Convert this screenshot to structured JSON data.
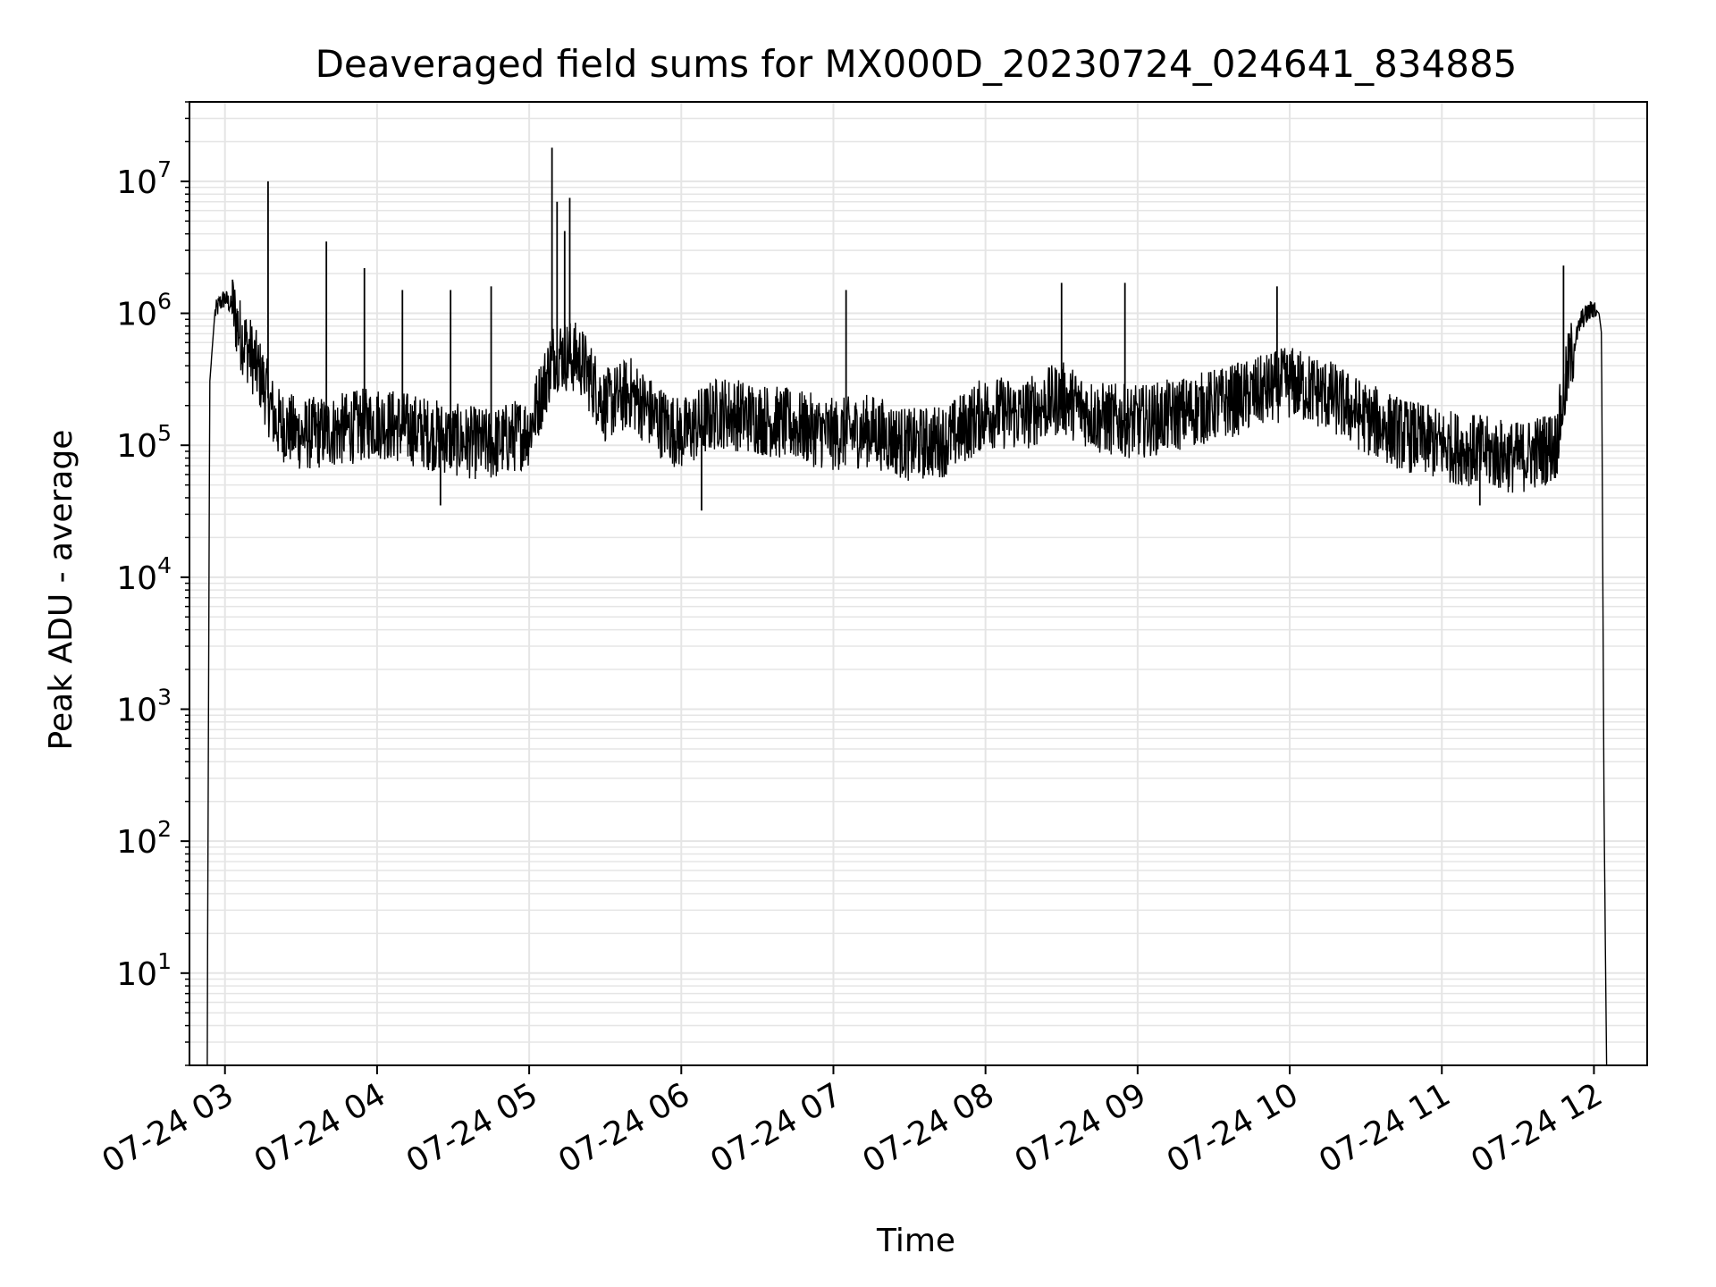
{
  "chart_data": {
    "type": "line",
    "title": "Deaveraged field sums for MX000D_20230724_024641_834885",
    "xlabel": "Time",
    "ylabel": "Peak ADU - average",
    "yscale": "log",
    "ylim": [
      2,
      40000000
    ],
    "xlim": [
      "2023-07-24 02:46",
      "2023-07-24 12:21"
    ],
    "grid": true,
    "series_color": "#000000",
    "grid_color": "#e5e5e5",
    "x_ticks": [
      {
        "value": "2023-07-24 03:00",
        "label": "07-24 03"
      },
      {
        "value": "2023-07-24 04:00",
        "label": "07-24 04"
      },
      {
        "value": "2023-07-24 05:00",
        "label": "07-24 05"
      },
      {
        "value": "2023-07-24 06:00",
        "label": "07-24 06"
      },
      {
        "value": "2023-07-24 07:00",
        "label": "07-24 07"
      },
      {
        "value": "2023-07-24 08:00",
        "label": "07-24 08"
      },
      {
        "value": "2023-07-24 09:00",
        "label": "07-24 09"
      },
      {
        "value": "2023-07-24 10:00",
        "label": "07-24 10"
      },
      {
        "value": "2023-07-24 11:00",
        "label": "07-24 11"
      },
      {
        "value": "2023-07-24 12:00",
        "label": "07-24 12"
      }
    ],
    "y_ticks": [
      {
        "value": 10,
        "base": "10",
        "exp": "1"
      },
      {
        "value": 100,
        "base": "10",
        "exp": "2"
      },
      {
        "value": 1000,
        "base": "10",
        "exp": "3"
      },
      {
        "value": 10000,
        "base": "10",
        "exp": "4"
      },
      {
        "value": 100000,
        "base": "10",
        "exp": "5"
      },
      {
        "value": 1000000,
        "base": "10",
        "exp": "6"
      },
      {
        "value": 10000000,
        "base": "10",
        "exp": "7"
      }
    ],
    "series": [
      {
        "x": [
          "2023-07-24 02:53",
          "2023-07-24 02:54",
          "2023-07-24 02:56",
          "2023-07-24 02:58",
          "2023-07-24 03:00",
          "2023-07-24 03:03",
          "2023-07-24 03:06",
          "2023-07-24 03:10",
          "2023-07-24 03:15",
          "2023-07-24 03:20",
          "2023-07-24 03:30",
          "2023-07-24 03:45",
          "2023-07-24 04:00",
          "2023-07-24 04:15",
          "2023-07-24 04:30",
          "2023-07-24 04:45",
          "2023-07-24 05:00",
          "2023-07-24 05:10",
          "2023-07-24 05:20",
          "2023-07-24 05:30",
          "2023-07-24 05:40",
          "2023-07-24 05:50",
          "2023-07-24 06:00",
          "2023-07-24 06:15",
          "2023-07-24 06:30",
          "2023-07-24 06:45",
          "2023-07-24 07:00",
          "2023-07-24 07:15",
          "2023-07-24 07:30",
          "2023-07-24 07:45",
          "2023-07-24 08:00",
          "2023-07-24 08:15",
          "2023-07-24 08:30",
          "2023-07-24 08:45",
          "2023-07-24 09:00",
          "2023-07-24 09:15",
          "2023-07-24 09:30",
          "2023-07-24 09:45",
          "2023-07-24 10:00",
          "2023-07-24 10:15",
          "2023-07-24 10:30",
          "2023-07-24 10:45",
          "2023-07-24 11:00",
          "2023-07-24 11:15",
          "2023-07-24 11:30",
          "2023-07-24 11:45",
          "2023-07-24 11:50",
          "2023-07-24 11:55",
          "2023-07-24 12:00",
          "2023-07-24 12:02",
          "2023-07-24 12:03",
          "2023-07-24 12:04",
          "2023-07-24 12:05"
        ],
        "y": [
          2,
          300000,
          1000000,
          1200000,
          1300000,
          1100000,
          700000,
          500000,
          300000,
          150000,
          120000,
          130000,
          150000,
          130000,
          110000,
          100000,
          130000,
          500000,
          450000,
          200000,
          250000,
          160000,
          120000,
          180000,
          160000,
          140000,
          120000,
          130000,
          100000,
          110000,
          180000,
          170000,
          230000,
          160000,
          150000,
          170000,
          200000,
          240000,
          300000,
          240000,
          160000,
          120000,
          100000,
          90000,
          80000,
          100000,
          400000,
          900000,
          1100000,
          1000000,
          700000,
          150,
          2
        ]
      }
    ],
    "spikes": [
      {
        "x": "2023-07-24 03:03",
        "y": 1800000
      },
      {
        "x": "2023-07-24 03:17",
        "y": 10000000
      },
      {
        "x": "2023-07-24 03:40",
        "y": 3500000
      },
      {
        "x": "2023-07-24 03:55",
        "y": 2200000
      },
      {
        "x": "2023-07-24 04:10",
        "y": 1500000
      },
      {
        "x": "2023-07-24 04:29",
        "y": 1500000
      },
      {
        "x": "2023-07-24 04:45",
        "y": 1600000
      },
      {
        "x": "2023-07-24 05:09",
        "y": 18000000
      },
      {
        "x": "2023-07-24 05:11",
        "y": 7000000
      },
      {
        "x": "2023-07-24 05:14",
        "y": 4200000
      },
      {
        "x": "2023-07-24 05:16",
        "y": 7500000
      },
      {
        "x": "2023-07-24 07:05",
        "y": 1500000
      },
      {
        "x": "2023-07-24 08:30",
        "y": 1700000
      },
      {
        "x": "2023-07-24 08:55",
        "y": 1700000
      },
      {
        "x": "2023-07-24 09:55",
        "y": 1600000
      },
      {
        "x": "2023-07-24 11:48",
        "y": 2300000
      }
    ],
    "dips": [
      {
        "x": "2023-07-24 06:08",
        "y": 32000
      },
      {
        "x": "2023-07-24 04:25",
        "y": 35000
      },
      {
        "x": "2023-07-24 11:15",
        "y": 35000
      }
    ]
  }
}
